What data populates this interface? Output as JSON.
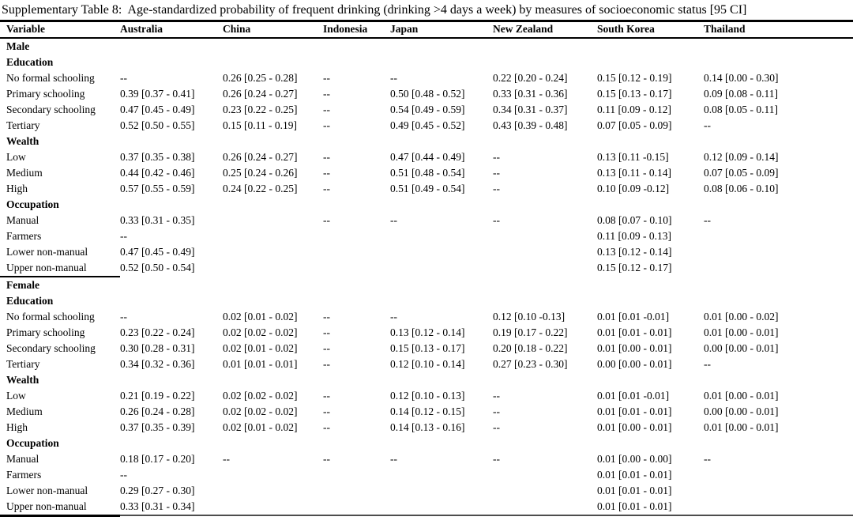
{
  "title": "Supplementary Table 8:  Age-standardized probability of frequent drinking (drinking >4 days a week) by measures of socioeconomic status [95 CI]",
  "table": {
    "columns": [
      "Variable",
      "Australia",
      "China",
      "Indonesia",
      "Japan",
      "New Zealand",
      "South Korea",
      "Thailand"
    ],
    "rows": [
      {
        "type": "section",
        "label": "Male"
      },
      {
        "type": "subsection",
        "label": "Education"
      },
      {
        "type": "data",
        "label": "No formal schooling",
        "values": [
          "--",
          "0.26 [0.25 - 0.28]",
          "--",
          "--",
          "0.22 [0.20 - 0.24]",
          "0.15 [0.12 - 0.19]",
          "0.14 [0.00 - 0.30]"
        ]
      },
      {
        "type": "data",
        "label": "Primary schooling",
        "values": [
          "0.39 [0.37 - 0.41]",
          "0.26 [0.24 - 0.27]",
          "--",
          "0.50 [0.48 - 0.52]",
          "0.33 [0.31 - 0.36]",
          "0.15 [0.13 - 0.17]",
          "0.09 [0.08 - 0.11]"
        ]
      },
      {
        "type": "data",
        "label": "Secondary schooling",
        "values": [
          "0.47 [0.45 - 0.49]",
          "0.23 [0.22 - 0.25]",
          "--",
          "0.54 [0.49 - 0.59]",
          "0.34 [0.31 - 0.37]",
          "0.11 [0.09 - 0.12]",
          "0.08 [0.05 - 0.11]"
        ]
      },
      {
        "type": "data",
        "label": "Tertiary",
        "values": [
          "0.52 [0.50 - 0.55]",
          "0.15 [0.11 - 0.19]",
          "--",
          "0.49 [0.45 - 0.52]",
          "0.43 [0.39 - 0.48]",
          "0.07 [0.05 - 0.09]",
          "--"
        ]
      },
      {
        "type": "subsection",
        "label": "Wealth"
      },
      {
        "type": "data",
        "label": "Low",
        "values": [
          "0.37 [0.35 - 0.38]",
          "0.26 [0.24 - 0.27]",
          "--",
          "0.47 [0.44 - 0.49]",
          "--",
          "0.13 [0.11 -0.15]",
          "0.12 [0.09 - 0.14]"
        ]
      },
      {
        "type": "data",
        "label": "Medium",
        "values": [
          "0.44 [0.42 - 0.46]",
          "0.25 [0.24 - 0.26]",
          "--",
          "0.51 [0.48 - 0.54]",
          "--",
          "0.13 [0.11 - 0.14]",
          "0.07 [0.05 - 0.09]"
        ]
      },
      {
        "type": "data",
        "label": "High",
        "values": [
          "0.57 [0.55 - 0.59]",
          "0.24 [0.22 - 0.25]",
          "--",
          "0.51 [0.49 - 0.54]",
          "--",
          "0.10 [0.09 -0.12]",
          "0.08 [0.06 - 0.10]"
        ]
      },
      {
        "type": "subsection",
        "label": "Occupation"
      },
      {
        "type": "data",
        "label": "Manual",
        "values": [
          "0.33 [0.31 - 0.35]",
          "",
          "--",
          "--",
          "--",
          "0.08 [0.07 - 0.10]",
          "--"
        ]
      },
      {
        "type": "data",
        "label": "Farmers",
        "values": [
          "--",
          "",
          "",
          "",
          "",
          "0.11 [0.09 - 0.13]",
          ""
        ]
      },
      {
        "type": "data",
        "label": "Lower non-manual",
        "values": [
          "0.47 [0.45 - 0.49]",
          "",
          "",
          "",
          "",
          "0.13 [0.12 - 0.14]",
          ""
        ]
      },
      {
        "type": "data",
        "label": "Upper non-manual",
        "values": [
          "0.52 [0.50 - 0.54]",
          "",
          "",
          "",
          "",
          "0.15 [0.12 - 0.17]",
          ""
        ]
      },
      {
        "type": "section",
        "label": "Female",
        "rule_above": true
      },
      {
        "type": "subsection",
        "label": "Education"
      },
      {
        "type": "data",
        "label": "No formal schooling",
        "values": [
          "--",
          "0.02 [0.01 - 0.02]",
          "--",
          "--",
          "0.12 [0.10 -0.13]",
          "0.01 [0.01 -0.01]",
          "0.01 [0.00 - 0.02]"
        ]
      },
      {
        "type": "data",
        "label": "Primary schooling",
        "values": [
          "0.23 [0.22 - 0.24]",
          "0.02 [0.02 - 0.02]",
          "--",
          "0.13 [0.12 - 0.14]",
          "0.19 [0.17 - 0.22]",
          "0.01 [0.01 - 0.01]",
          "0.01 [0.00 - 0.01]"
        ]
      },
      {
        "type": "data",
        "label": "Secondary schooling",
        "values": [
          "0.30 [0.28 - 0.31]",
          "0.02 [0.01 - 0.02]",
          "--",
          "0.15 [0.13 - 0.17]",
          "0.20 [0.18 - 0.22]",
          "0.01 [0.00 - 0.01]",
          "0.00 [0.00 - 0.01]"
        ]
      },
      {
        "type": "data",
        "label": "Tertiary",
        "values": [
          "0.34 [0.32 - 0.36]",
          "0.01 [0.01 - 0.01]",
          "--",
          "0.12 [0.10 - 0.14]",
          "0.27 [0.23 - 0.30]",
          "0.00 [0.00 - 0.01]",
          "--"
        ]
      },
      {
        "type": "subsection",
        "label": "Wealth"
      },
      {
        "type": "data",
        "label": "Low",
        "values": [
          "0.21 [0.19 - 0.22]",
          "0.02 [0.02 - 0.02]",
          "--",
          "0.12 [0.10 - 0.13]",
          "--",
          "0.01 [0.01 -0.01]",
          "0.01 [0.00 - 0.01]"
        ]
      },
      {
        "type": "data",
        "label": "Medium",
        "values": [
          "0.26 [0.24 - 0.28]",
          "0.02 [0.02 - 0.02]",
          "--",
          "0.14 [0.12 - 0.15]",
          "--",
          "0.01 [0.01 - 0.01]",
          "0.00 [0.00 - 0.01]"
        ]
      },
      {
        "type": "data",
        "label": "High",
        "values": [
          "0.37 [0.35 - 0.39]",
          "0.02 [0.01 - 0.02]",
          "--",
          "0.14 [0.13 - 0.16]",
          "--",
          "0.01 [0.00 - 0.01]",
          "0.01 [0.00 - 0.01]"
        ]
      },
      {
        "type": "subsection",
        "label": "Occupation"
      },
      {
        "type": "data",
        "label": "Manual",
        "values": [
          "0.18 [0.17 - 0.20]",
          "--",
          "--",
          "--",
          "--",
          "0.01 [0.00 - 0.00]",
          "--"
        ]
      },
      {
        "type": "data",
        "label": "Farmers",
        "values": [
          "--",
          "",
          "",
          "",
          "",
          "0.01 [0.01 - 0.01]",
          ""
        ]
      },
      {
        "type": "data",
        "label": "Lower non-manual",
        "values": [
          "0.29 [0.27 - 0.30]",
          "",
          "",
          "",
          "",
          "0.01 [0.01 - 0.01]",
          ""
        ]
      },
      {
        "type": "data",
        "label": "Upper non-manual",
        "values": [
          "0.33 [0.31 - 0.34]",
          "",
          "",
          "",
          "",
          "0.01 [0.01 - 0.01]",
          ""
        ]
      }
    ]
  }
}
